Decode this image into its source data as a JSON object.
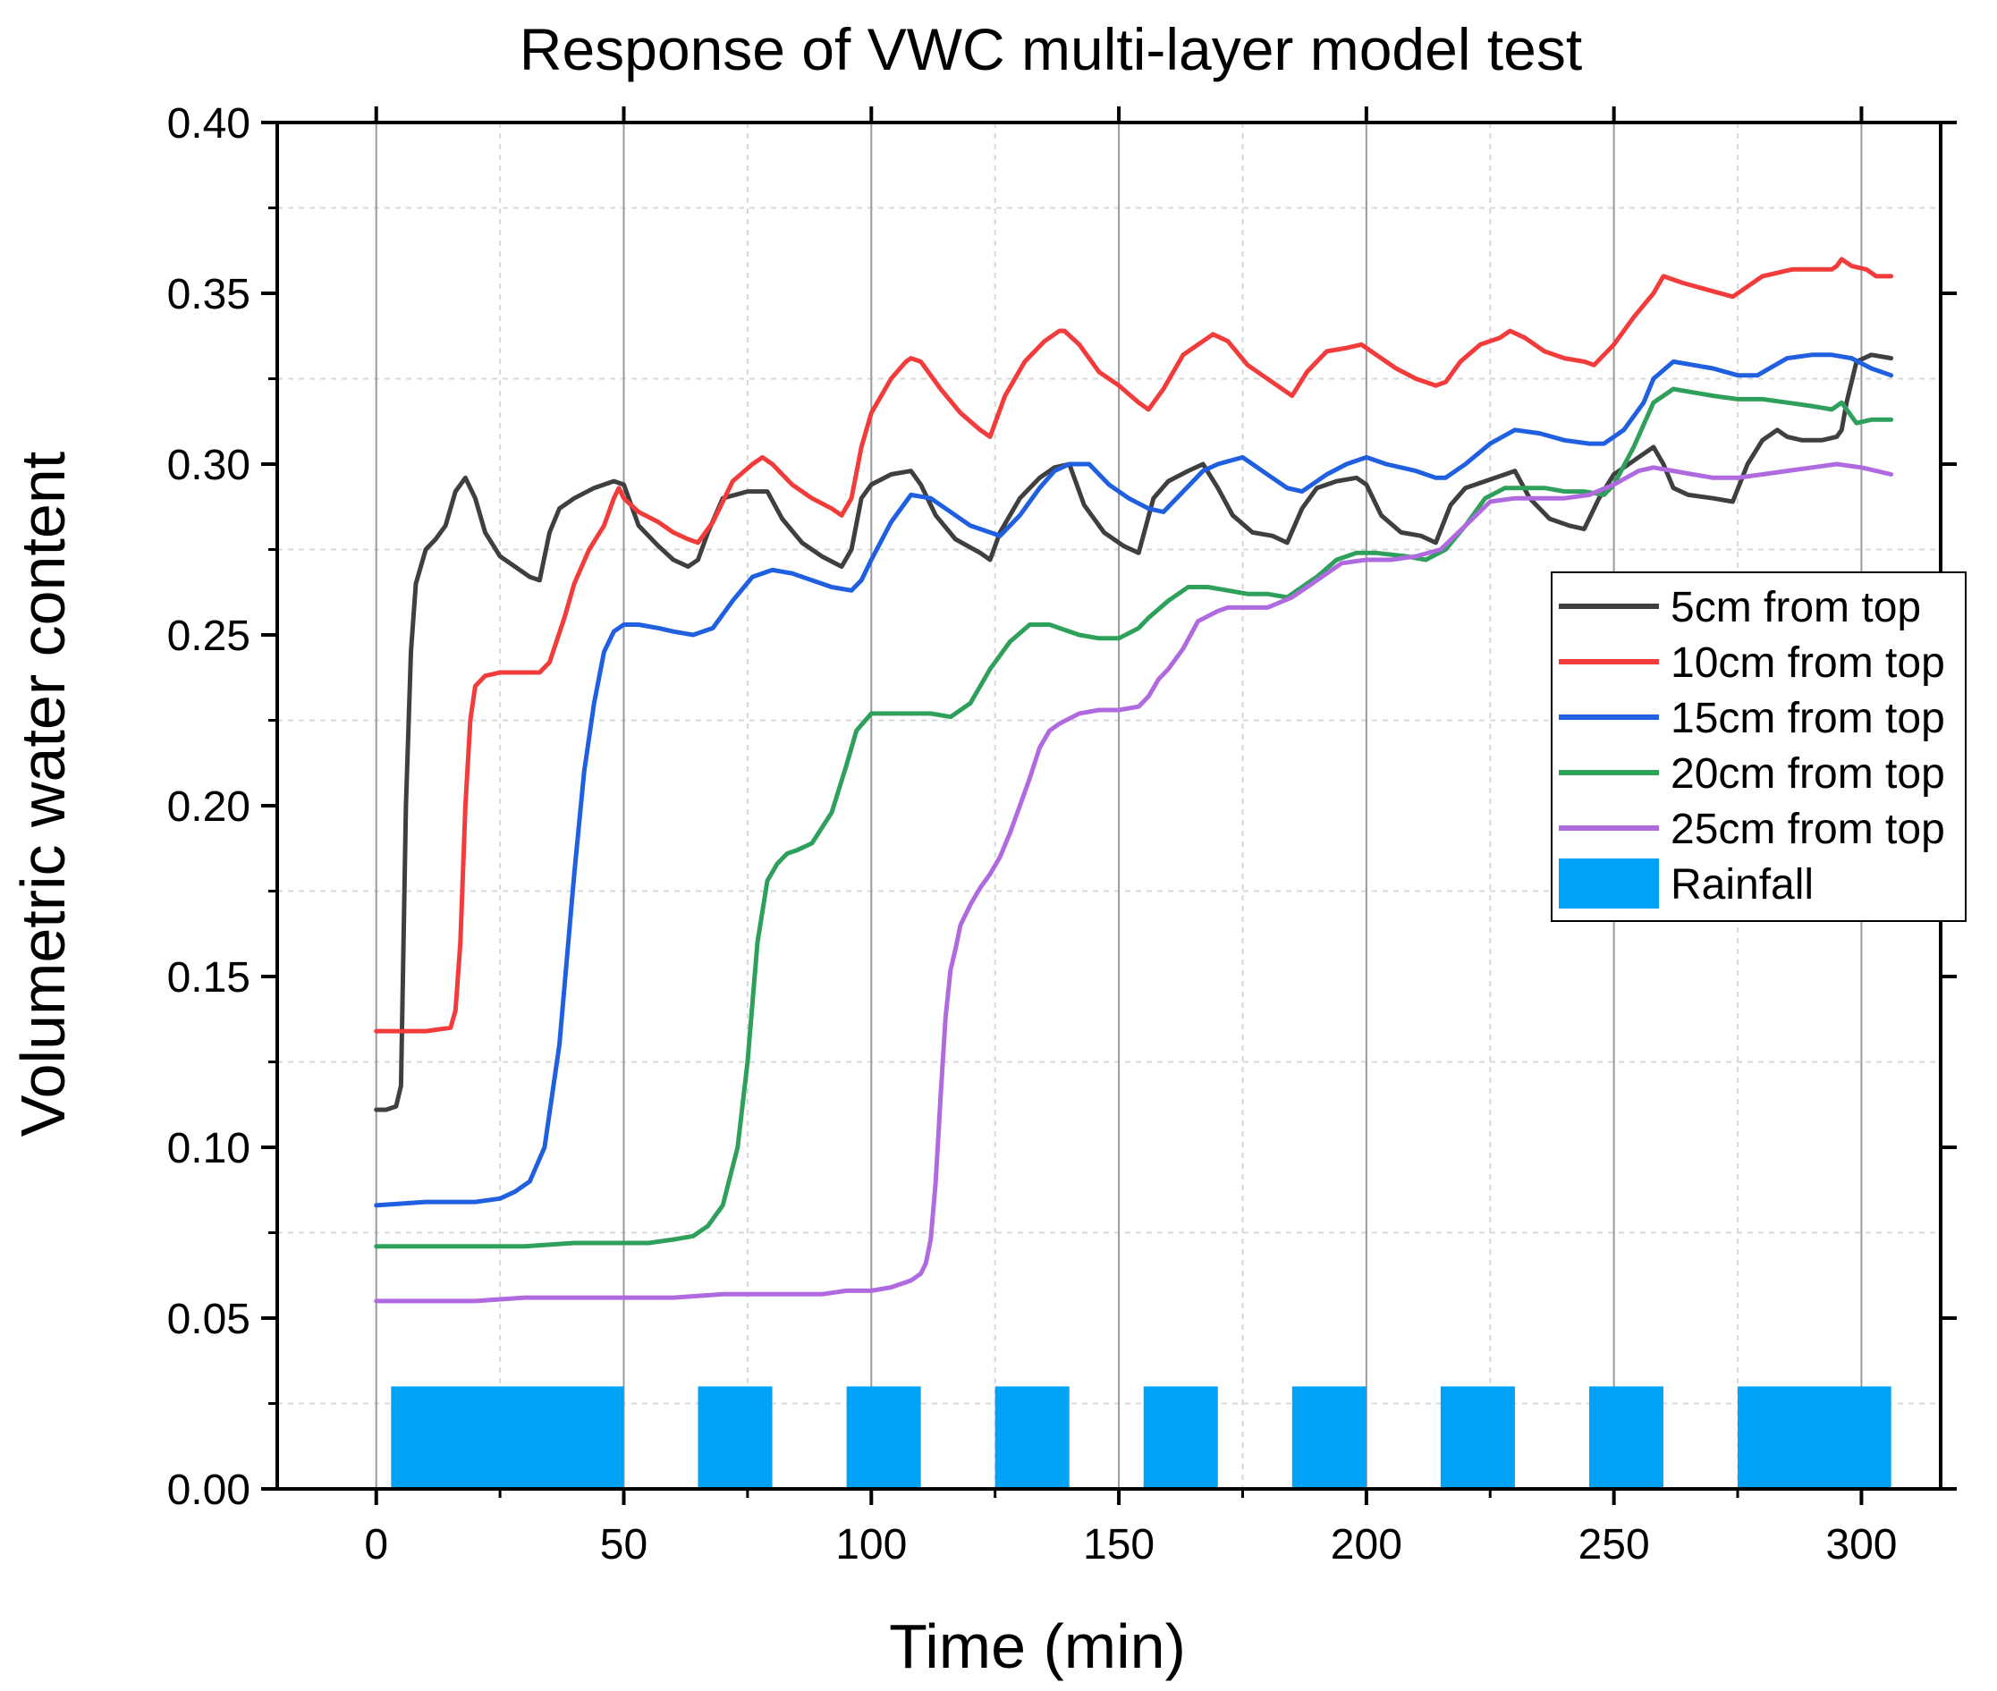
{
  "chart_data": {
    "type": "line",
    "title": "Response of VWC multi-layer model test",
    "xlabel": "Time (min)",
    "ylabel": "Volumetric water content",
    "xlim": [
      -20,
      316
    ],
    "ylim": [
      0,
      0.4
    ],
    "xticks": [
      0,
      50,
      100,
      150,
      200,
      250,
      300
    ],
    "xtick_labels": [
      "0",
      "50",
      "100",
      "150",
      "200",
      "250",
      "300"
    ],
    "yticks": [
      0,
      0.05,
      0.1,
      0.15,
      0.2,
      0.25,
      0.3,
      0.35,
      0.4
    ],
    "ytick_labels": [
      "0.00",
      "0.05",
      "0.10",
      "0.15",
      "0.20",
      "0.25",
      "0.30",
      "0.35",
      "0.40"
    ],
    "grid": true,
    "legend_position": "right",
    "series": [
      {
        "name": "5cm from top",
        "color": "#3f3f3f",
        "x": [
          0,
          2,
          4,
          5,
          6,
          7,
          8,
          10,
          12,
          14,
          16,
          18,
          20,
          22,
          25,
          28,
          31,
          33,
          35,
          37,
          40,
          44,
          48,
          50,
          53,
          57,
          60,
          63,
          65,
          67,
          70,
          75,
          79,
          82,
          86,
          90,
          94,
          96,
          98,
          100,
          104,
          108,
          110,
          113,
          117,
          122,
          124,
          126,
          130,
          134,
          137,
          140,
          143,
          147,
          151,
          154,
          157,
          160,
          164,
          167,
          170,
          173,
          177,
          181,
          184,
          187,
          190,
          194,
          198,
          200,
          203,
          207,
          211,
          214,
          217,
          220,
          224,
          228,
          230,
          233,
          237,
          241,
          244,
          247,
          250,
          253,
          256,
          258,
          260,
          262,
          265,
          270,
          274,
          277,
          280,
          283,
          285,
          288,
          292,
          295,
          296,
          297,
          299,
          302,
          306
        ],
        "values": [
          0.111,
          0.111,
          0.112,
          0.118,
          0.2,
          0.245,
          0.265,
          0.275,
          0.278,
          0.282,
          0.292,
          0.296,
          0.29,
          0.28,
          0.273,
          0.27,
          0.267,
          0.266,
          0.28,
          0.287,
          0.29,
          0.293,
          0.295,
          0.294,
          0.282,
          0.276,
          0.272,
          0.27,
          0.272,
          0.28,
          0.29,
          0.292,
          0.292,
          0.284,
          0.277,
          0.273,
          0.27,
          0.275,
          0.29,
          0.294,
          0.297,
          0.298,
          0.294,
          0.285,
          0.278,
          0.274,
          0.272,
          0.28,
          0.29,
          0.296,
          0.299,
          0.3,
          0.288,
          0.28,
          0.276,
          0.274,
          0.29,
          0.295,
          0.298,
          0.3,
          0.293,
          0.285,
          0.28,
          0.279,
          0.277,
          0.287,
          0.293,
          0.295,
          0.296,
          0.294,
          0.285,
          0.28,
          0.279,
          0.277,
          0.288,
          0.293,
          0.295,
          0.297,
          0.298,
          0.29,
          0.284,
          0.282,
          0.281,
          0.29,
          0.297,
          0.3,
          0.303,
          0.305,
          0.3,
          0.293,
          0.291,
          0.29,
          0.289,
          0.3,
          0.307,
          0.31,
          0.308,
          0.307,
          0.307,
          0.308,
          0.31,
          0.318,
          0.33,
          0.332,
          0.331
        ]
      },
      {
        "name": "10cm from top",
        "color": "#f23b3b",
        "x": [
          0,
          5,
          10,
          15,
          16,
          17,
          18,
          19,
          20,
          22,
          25,
          30,
          33,
          35,
          38,
          40,
          43,
          46,
          48,
          49,
          50,
          53,
          57,
          60,
          63,
          65,
          68,
          72,
          76,
          78,
          80,
          84,
          88,
          92,
          94,
          96,
          98,
          100,
          104,
          107,
          108,
          110,
          114,
          118,
          122,
          124,
          127,
          131,
          135,
          138,
          139,
          142,
          146,
          150,
          154,
          156,
          159,
          163,
          167,
          169,
          172,
          176,
          180,
          184,
          185,
          188,
          192,
          196,
          199,
          202,
          206,
          210,
          214,
          216,
          219,
          223,
          227,
          229,
          232,
          236,
          240,
          244,
          246,
          250,
          254,
          258,
          260,
          264,
          269,
          274,
          275,
          280,
          286,
          290,
          294,
          295,
          296,
          298,
          301,
          303,
          306
        ],
        "values": [
          0.134,
          0.134,
          0.134,
          0.135,
          0.14,
          0.16,
          0.2,
          0.225,
          0.235,
          0.238,
          0.239,
          0.239,
          0.239,
          0.242,
          0.255,
          0.265,
          0.275,
          0.282,
          0.29,
          0.293,
          0.29,
          0.286,
          0.283,
          0.28,
          0.278,
          0.277,
          0.283,
          0.295,
          0.3,
          0.302,
          0.3,
          0.294,
          0.29,
          0.287,
          0.285,
          0.29,
          0.305,
          0.315,
          0.325,
          0.33,
          0.331,
          0.33,
          0.322,
          0.315,
          0.31,
          0.308,
          0.32,
          0.33,
          0.336,
          0.339,
          0.339,
          0.335,
          0.327,
          0.323,
          0.318,
          0.316,
          0.322,
          0.332,
          0.336,
          0.338,
          0.336,
          0.329,
          0.325,
          0.321,
          0.32,
          0.327,
          0.333,
          0.334,
          0.335,
          0.332,
          0.328,
          0.325,
          0.323,
          0.324,
          0.33,
          0.335,
          0.337,
          0.339,
          0.337,
          0.333,
          0.331,
          0.33,
          0.329,
          0.335,
          0.343,
          0.35,
          0.355,
          0.353,
          0.351,
          0.349,
          0.35,
          0.355,
          0.357,
          0.357,
          0.357,
          0.358,
          0.36,
          0.358,
          0.357,
          0.355,
          0.355
        ]
      },
      {
        "name": "15cm from top",
        "color": "#1f5fe0",
        "x": [
          0,
          10,
          20,
          25,
          28,
          31,
          34,
          37,
          40,
          42,
          44,
          46,
          48,
          50,
          53,
          57,
          60,
          64,
          68,
          72,
          76,
          80,
          84,
          88,
          92,
          96,
          98,
          100,
          104,
          108,
          112,
          116,
          120,
          124,
          126,
          130,
          134,
          137,
          140,
          144,
          148,
          152,
          156,
          159,
          163,
          167,
          170,
          175,
          180,
          184,
          187,
          192,
          196,
          200,
          204,
          210,
          214,
          216,
          220,
          225,
          230,
          235,
          240,
          245,
          248,
          252,
          256,
          258,
          262,
          266,
          270,
          275,
          279,
          285,
          290,
          294,
          298,
          302,
          306
        ],
        "values": [
          0.083,
          0.084,
          0.084,
          0.085,
          0.087,
          0.09,
          0.1,
          0.13,
          0.18,
          0.21,
          0.23,
          0.245,
          0.251,
          0.253,
          0.253,
          0.252,
          0.251,
          0.25,
          0.252,
          0.26,
          0.267,
          0.269,
          0.268,
          0.266,
          0.264,
          0.263,
          0.266,
          0.272,
          0.283,
          0.291,
          0.29,
          0.286,
          0.282,
          0.28,
          0.279,
          0.285,
          0.293,
          0.298,
          0.3,
          0.3,
          0.294,
          0.29,
          0.287,
          0.286,
          0.292,
          0.298,
          0.3,
          0.302,
          0.297,
          0.293,
          0.292,
          0.297,
          0.3,
          0.302,
          0.3,
          0.298,
          0.296,
          0.296,
          0.3,
          0.306,
          0.31,
          0.309,
          0.307,
          0.306,
          0.306,
          0.31,
          0.318,
          0.325,
          0.33,
          0.329,
          0.328,
          0.326,
          0.326,
          0.331,
          0.332,
          0.332,
          0.331,
          0.328,
          0.326
        ]
      },
      {
        "name": "20cm from top",
        "color": "#2fa05c",
        "x": [
          0,
          10,
          20,
          30,
          40,
          50,
          55,
          60,
          64,
          67,
          70,
          73,
          75,
          77,
          79,
          81,
          83,
          85,
          88,
          92,
          95,
          97,
          100,
          104,
          106,
          108,
          112,
          116,
          120,
          124,
          128,
          132,
          136,
          138,
          142,
          146,
          150,
          154,
          156,
          160,
          164,
          168,
          172,
          176,
          180,
          184,
          186,
          190,
          194,
          198,
          202,
          208,
          212,
          216,
          220,
          224,
          228,
          232,
          236,
          240,
          244,
          248,
          250,
          254,
          258,
          262,
          266,
          270,
          275,
          280,
          285,
          290,
          294,
          296,
          299,
          302,
          306
        ],
        "values": [
          0.071,
          0.071,
          0.071,
          0.071,
          0.072,
          0.072,
          0.072,
          0.073,
          0.074,
          0.077,
          0.083,
          0.1,
          0.125,
          0.16,
          0.178,
          0.183,
          0.186,
          0.187,
          0.189,
          0.198,
          0.212,
          0.222,
          0.227,
          0.227,
          0.227,
          0.227,
          0.227,
          0.226,
          0.23,
          0.24,
          0.248,
          0.253,
          0.253,
          0.252,
          0.25,
          0.249,
          0.249,
          0.252,
          0.255,
          0.26,
          0.264,
          0.264,
          0.263,
          0.262,
          0.262,
          0.261,
          0.263,
          0.267,
          0.272,
          0.274,
          0.274,
          0.273,
          0.272,
          0.275,
          0.282,
          0.29,
          0.293,
          0.293,
          0.293,
          0.292,
          0.292,
          0.291,
          0.294,
          0.305,
          0.318,
          0.322,
          0.321,
          0.32,
          0.319,
          0.319,
          0.318,
          0.317,
          0.316,
          0.318,
          0.312,
          0.313,
          0.313
        ]
      },
      {
        "name": "25cm from top",
        "color": "#b06ae0",
        "x": [
          0,
          10,
          20,
          30,
          40,
          50,
          60,
          70,
          80,
          90,
          95,
          100,
          104,
          106,
          108,
          110,
          111,
          112,
          113,
          114,
          115,
          116,
          117,
          118,
          120,
          122,
          124,
          126,
          128,
          130,
          132,
          134,
          136,
          138,
          142,
          146,
          150,
          154,
          156,
          158,
          160,
          163,
          166,
          170,
          172,
          175,
          180,
          185,
          190,
          195,
          200,
          205,
          210,
          215,
          220,
          225,
          230,
          235,
          240,
          245,
          250,
          255,
          258,
          262,
          266,
          270,
          275,
          280,
          285,
          290,
          295,
          300,
          303,
          306
        ],
        "values": [
          0.055,
          0.055,
          0.055,
          0.056,
          0.056,
          0.056,
          0.056,
          0.057,
          0.057,
          0.057,
          0.058,
          0.058,
          0.059,
          0.06,
          0.061,
          0.063,
          0.066,
          0.073,
          0.09,
          0.115,
          0.138,
          0.152,
          0.158,
          0.165,
          0.171,
          0.176,
          0.18,
          0.185,
          0.192,
          0.2,
          0.208,
          0.217,
          0.222,
          0.224,
          0.227,
          0.228,
          0.228,
          0.229,
          0.232,
          0.237,
          0.24,
          0.246,
          0.254,
          0.257,
          0.258,
          0.258,
          0.258,
          0.261,
          0.266,
          0.271,
          0.272,
          0.272,
          0.273,
          0.275,
          0.282,
          0.289,
          0.29,
          0.29,
          0.29,
          0.291,
          0.294,
          0.298,
          0.299,
          0.298,
          0.297,
          0.296,
          0.296,
          0.297,
          0.298,
          0.299,
          0.3,
          0.299,
          0.298,
          0.297
        ]
      }
    ],
    "bars": {
      "name": "Rainfall",
      "color": "#00a2f7",
      "height": 0.03,
      "intervals": [
        [
          3,
          50
        ],
        [
          65,
          80
        ],
        [
          95,
          110
        ],
        [
          125,
          140
        ],
        [
          155,
          170
        ],
        [
          185,
          200
        ],
        [
          215,
          230
        ],
        [
          245,
          260
        ],
        [
          275,
          306
        ]
      ]
    }
  }
}
